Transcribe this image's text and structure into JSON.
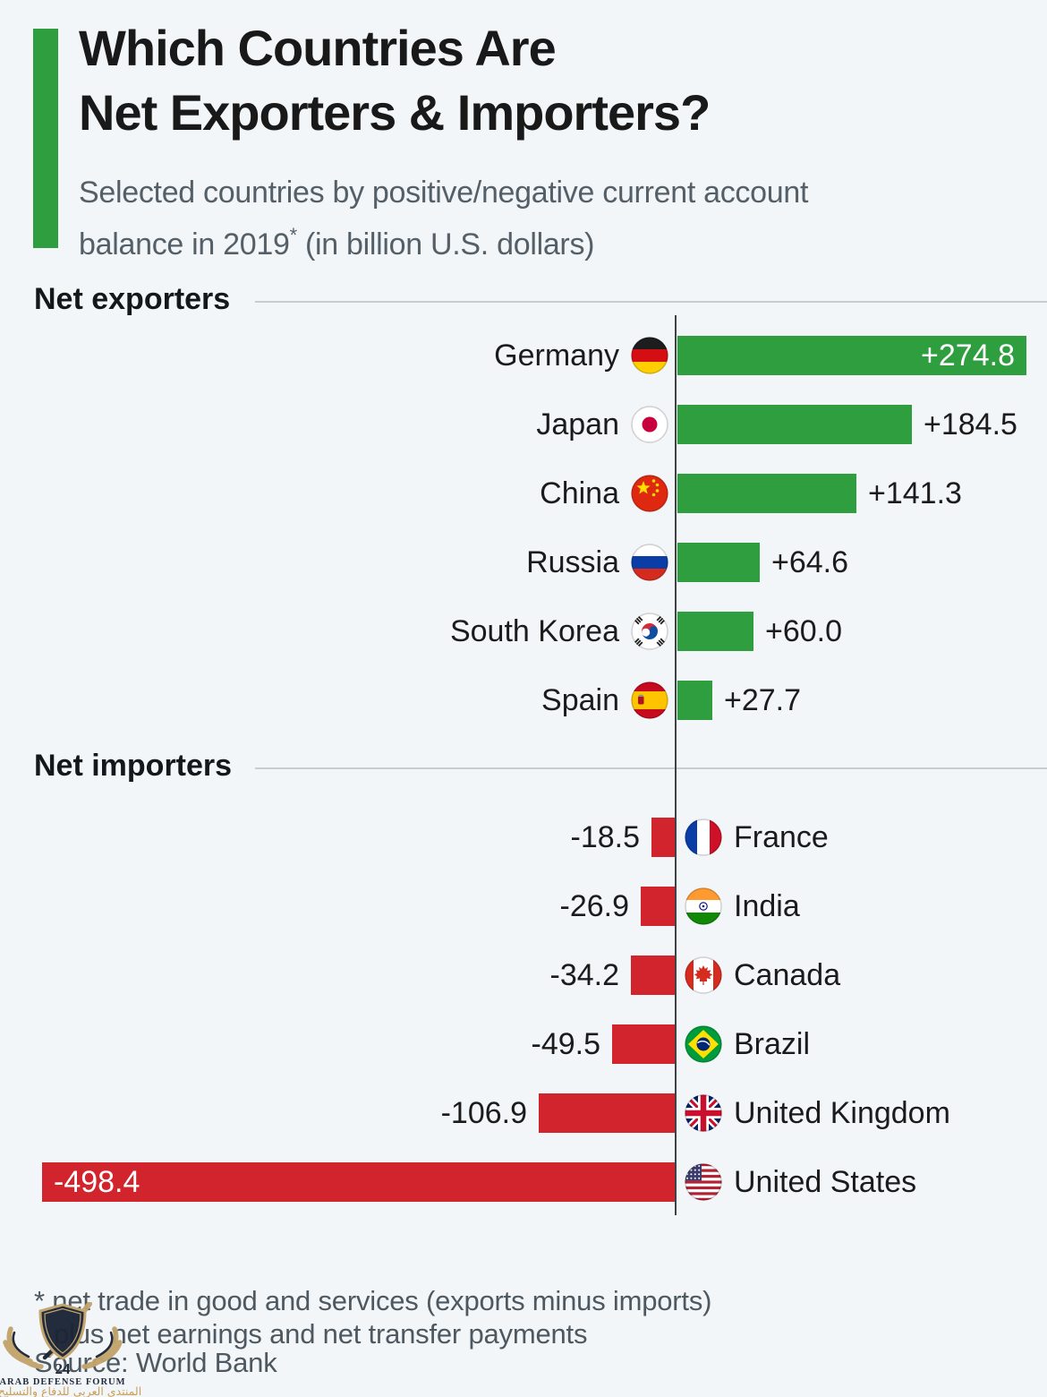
{
  "header": {
    "title_line1": "Which Countries Are",
    "title_line2": "Net Exporters & Importers?",
    "subtitle_line1": "Selected countries by positive/negative current account",
    "subtitle_line2_pre": "balance in 2019",
    "subtitle_superscript": "*",
    "subtitle_line2_post": " (in billion U.S. dollars)",
    "accent_color": "#2f9e3e"
  },
  "chart_data": {
    "type": "bar",
    "orientation": "horizontal-diverging",
    "title": "Which Countries Are Net Exporters & Importers?",
    "unit": "billion U.S. dollars",
    "year": "2019",
    "positive_color": "#2f9e3e",
    "negative_color": "#d2242c",
    "axis_origin": 0,
    "groups": [
      {
        "name": "Net exporters",
        "side": "positive",
        "rows": [
          {
            "country": "Germany",
            "value": 274.8,
            "display": "+274.8",
            "flag": "germany-flag",
            "value_inside": true
          },
          {
            "country": "Japan",
            "value": 184.5,
            "display": "+184.5",
            "flag": "japan-flag",
            "value_inside": false
          },
          {
            "country": "China",
            "value": 141.3,
            "display": "+141.3",
            "flag": "china-flag",
            "value_inside": false
          },
          {
            "country": "Russia",
            "value": 64.6,
            "display": "+64.6",
            "flag": "russia-flag",
            "value_inside": false
          },
          {
            "country": "South Korea",
            "value": 60.0,
            "display": "+60.0",
            "flag": "south-korea-flag",
            "value_inside": false
          },
          {
            "country": "Spain",
            "value": 27.7,
            "display": "+27.7",
            "flag": "spain-flag",
            "value_inside": false
          }
        ]
      },
      {
        "name": "Net importers",
        "side": "negative",
        "rows": [
          {
            "country": "France",
            "value": -18.5,
            "display": "-18.5",
            "flag": "france-flag",
            "value_inside": false
          },
          {
            "country": "India",
            "value": -26.9,
            "display": "-26.9",
            "flag": "india-flag",
            "value_inside": false
          },
          {
            "country": "Canada",
            "value": -34.2,
            "display": "-34.2",
            "flag": "canada-flag",
            "value_inside": false
          },
          {
            "country": "Brazil",
            "value": -49.5,
            "display": "-49.5",
            "flag": "brazil-flag",
            "value_inside": false
          },
          {
            "country": "United Kingdom",
            "value": -106.9,
            "display": "-106.9",
            "flag": "united-kingdom-flag",
            "value_inside": false
          },
          {
            "country": "United States",
            "value": -498.4,
            "display": "-498.4",
            "flag": "united-states-flag",
            "value_inside": true
          }
        ]
      }
    ]
  },
  "footer": {
    "footnote_line1": "* net trade in good and services (exports minus imports)",
    "footnote_line2": "plus net earnings and net transfer payments",
    "source": "Source: World Bank"
  },
  "watermark": {
    "number": "24",
    "name": "ARAB DEFENSE FORUM",
    "arabic": "المنتدى العربي للدفاع والتسليح",
    "gold": "#c2a36b",
    "navy": "#1b2435"
  }
}
